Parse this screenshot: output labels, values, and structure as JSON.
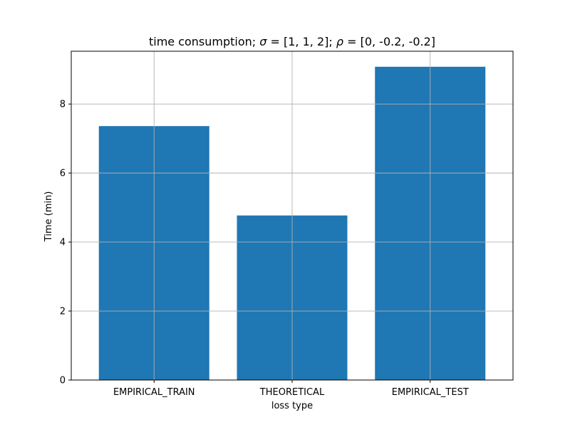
{
  "chart_data": {
    "type": "bar",
    "title": {
      "prefix": "time consumption;  ",
      "sigma_symbol": "σ",
      "sigma_value": " = [1, 1, 2];  ",
      "rho_symbol": "ρ",
      "rho_value": " = [0, -0.2, -0.2]"
    },
    "xlabel": "loss type",
    "ylabel": "Time (min)",
    "categories": [
      "EMPIRICAL_TRAIN",
      "THEORETICAL",
      "EMPIRICAL_TEST"
    ],
    "values": [
      7.36,
      4.77,
      9.08
    ],
    "ylim": [
      0,
      9.53
    ],
    "yticks": [
      0,
      2,
      4,
      6,
      8
    ],
    "grid": true,
    "bar_color": "#1f77b4",
    "grid_color": "#b0b0b0"
  }
}
